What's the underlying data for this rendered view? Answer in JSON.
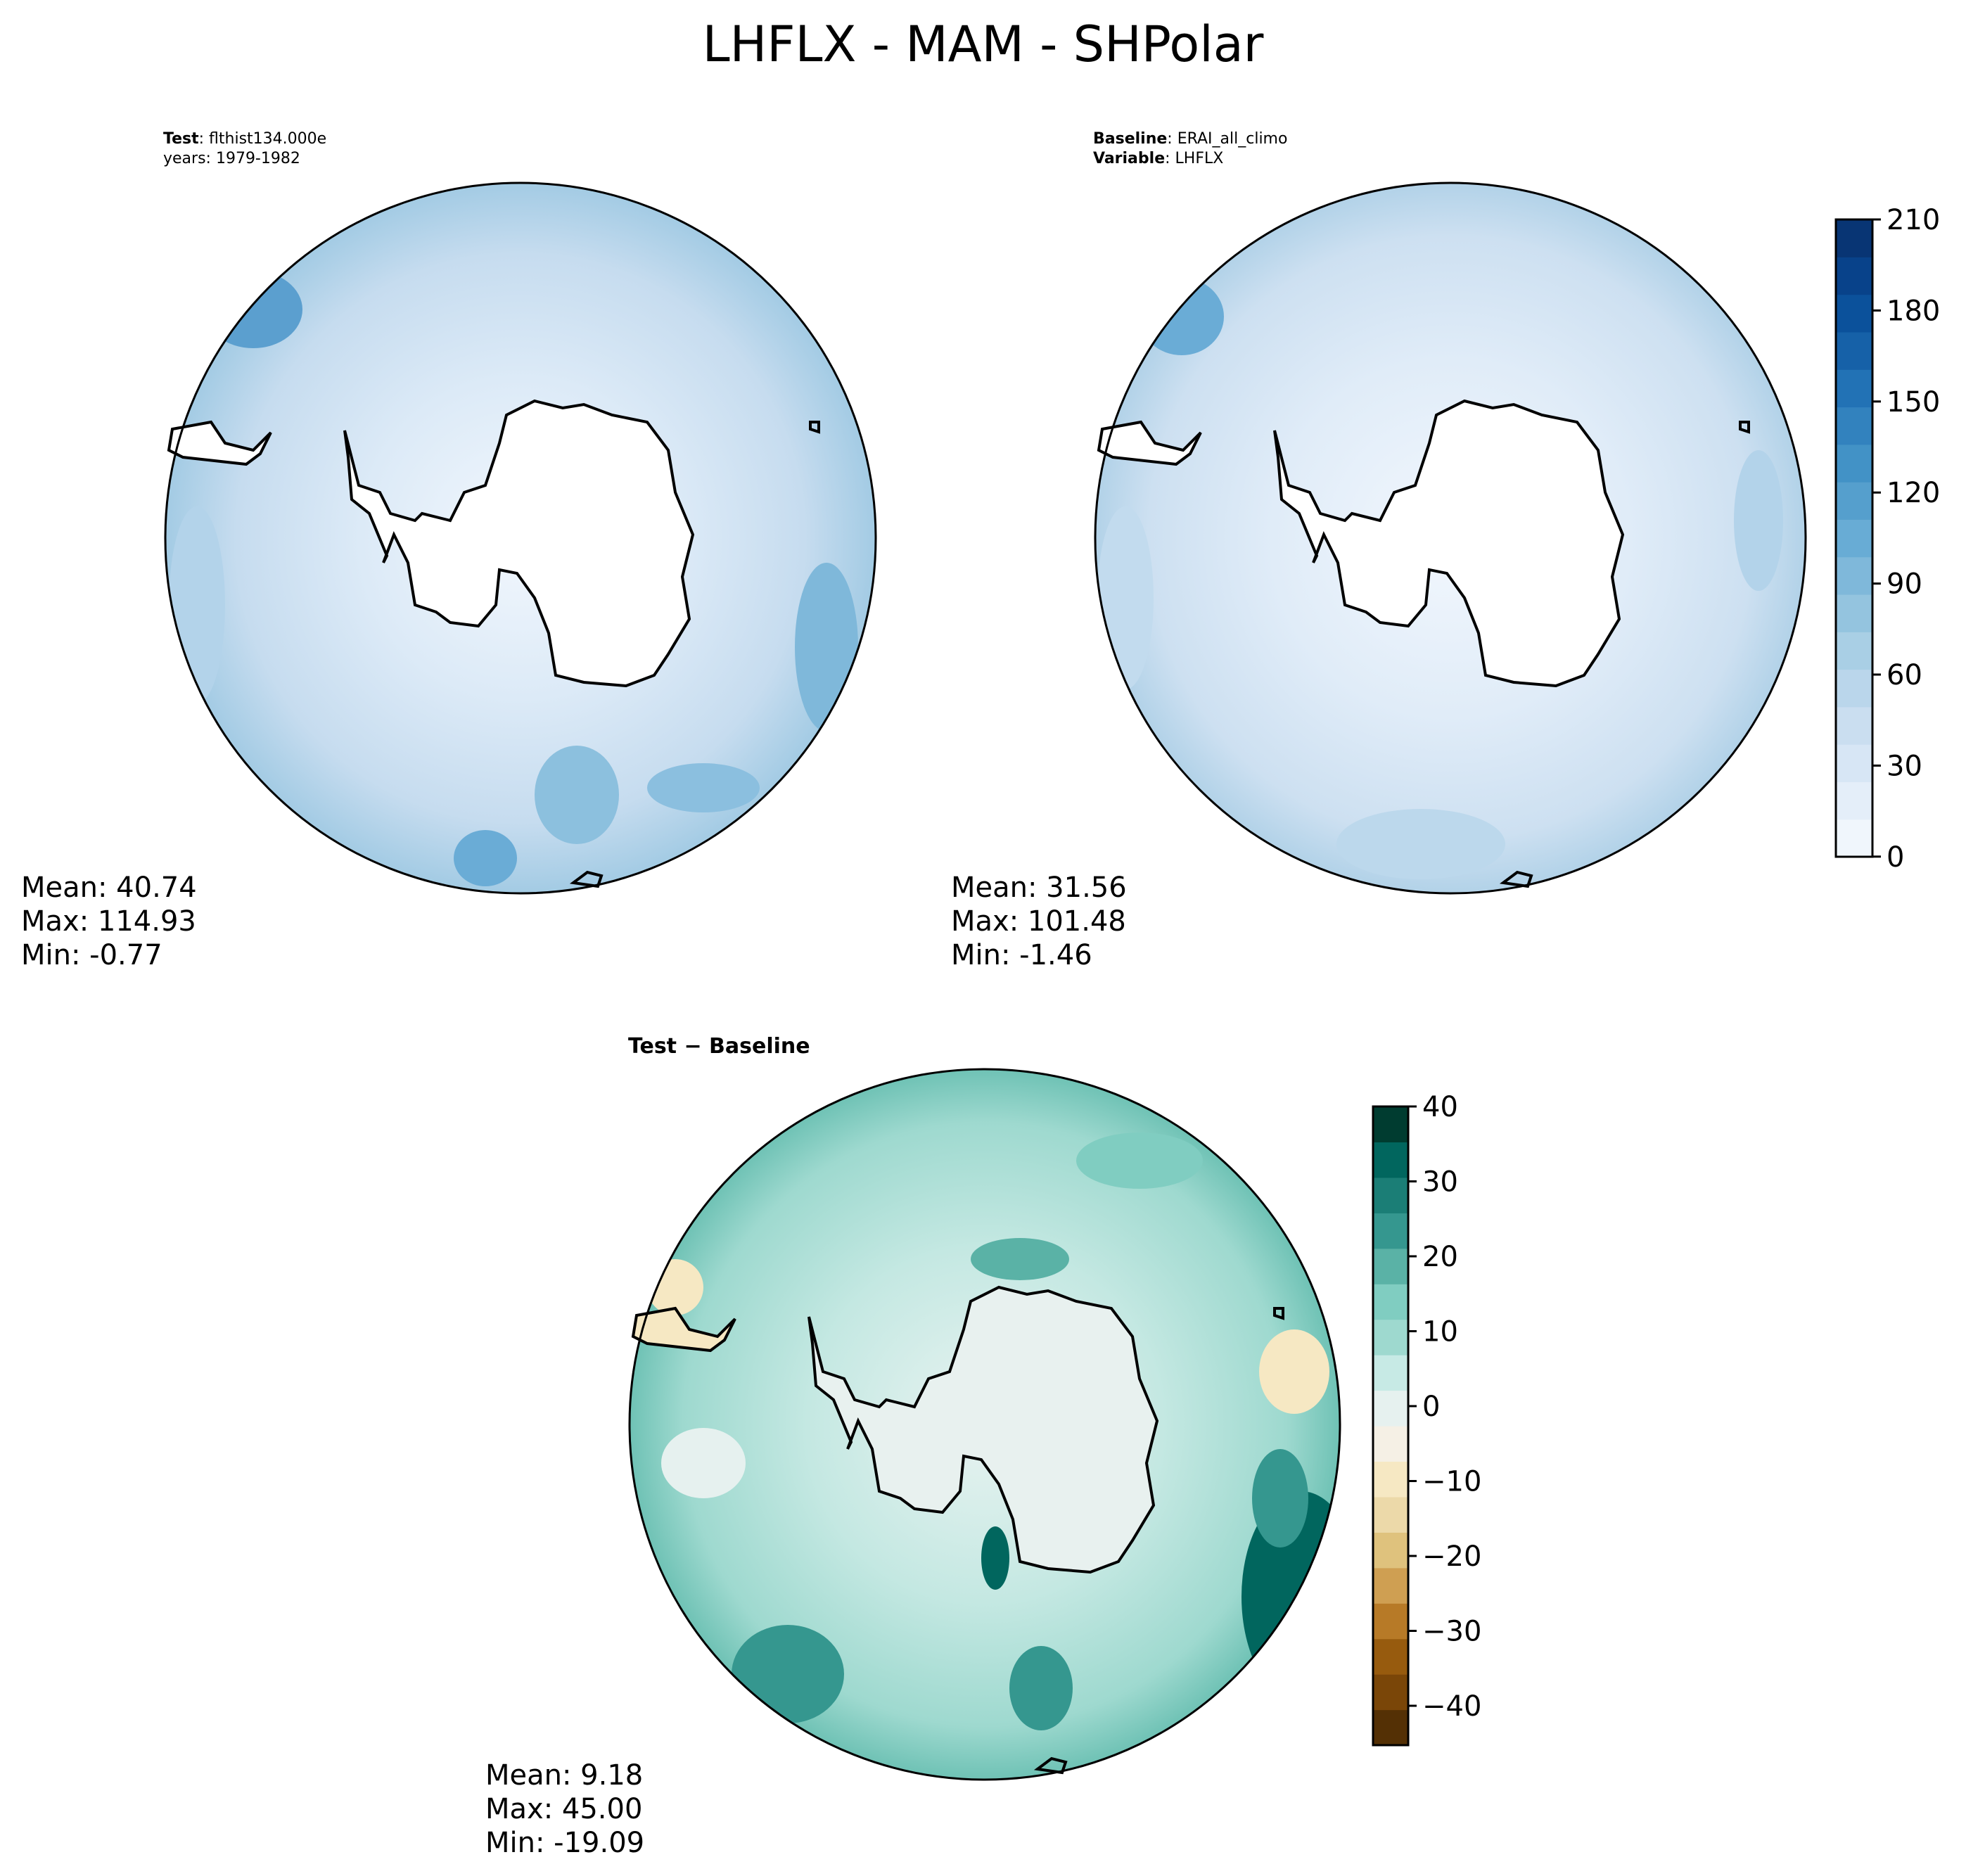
{
  "title": "LHFLX - MAM - SHPolar",
  "panels": [
    {
      "id": "test",
      "header": [
        {
          "bold": "Test",
          "rest": ": flthist134.000e"
        },
        {
          "bold": "",
          "rest": "years: 1979-1982"
        }
      ],
      "stats": [
        "Mean: 40.74",
        "Max: 114.93",
        "Min: -0.77"
      ]
    },
    {
      "id": "baseline",
      "header": [
        {
          "bold": "Baseline",
          "rest": ": ERAI_all_climo"
        },
        {
          "bold": "Variable",
          "rest": ": LHFLX"
        }
      ],
      "stats": [
        "Mean: 31.56",
        "Max: 101.48",
        "Min: -1.46"
      ]
    },
    {
      "id": "diff",
      "header": [
        {
          "bold": "Test − Baseline",
          "rest": ""
        }
      ],
      "stats": [
        "Mean:  9.18",
        "Max: 45.00",
        "Min: -19.09"
      ]
    }
  ],
  "colorbars": {
    "main": {
      "ticks": [
        "210",
        "180",
        "150",
        "120",
        "90",
        "60",
        "30",
        "0"
      ],
      "colors": [
        "#f0f6fc",
        "#e4eef9",
        "#d7e6f5",
        "#cadef0",
        "#bad6eb",
        "#a9cfe5",
        "#94c4df",
        "#7fb8da",
        "#68acd5",
        "#559fcd",
        "#4292c6",
        "#3282be",
        "#2272b5",
        "#1661a8",
        "#0b519b",
        "#08428a",
        "#083574"
      ]
    },
    "diff": {
      "ticks": [
        "40",
        "30",
        "20",
        "10",
        "0",
        "−10",
        "−20",
        "−30",
        "−40"
      ],
      "colors": [
        "#543005",
        "#7a4608",
        "#975b0e",
        "#b77a27",
        "#cf9f52",
        "#dfc27d",
        "#ecd9a9",
        "#f6e8c3",
        "#f5f0e5",
        "#e6f1ef",
        "#c7eae5",
        "#9ed9cf",
        "#80cdc1",
        "#5ab2a6",
        "#35978f",
        "#1b7e76",
        "#01665e",
        "#003c30"
      ]
    }
  }
}
